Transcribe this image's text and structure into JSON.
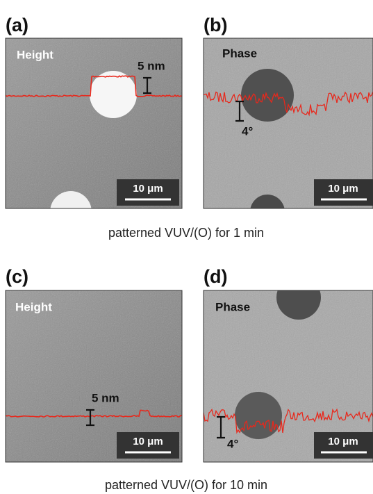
{
  "figure": {
    "rows": [
      {
        "caption": "patterned VUV/(O) for 1 min",
        "panels": [
          {
            "label": "(a)",
            "mode": "Height",
            "profile_scale": "5 nm",
            "scale_bar": "10 μm"
          },
          {
            "label": "(b)",
            "mode": "Phase",
            "profile_scale": "4°",
            "scale_bar": "10 μm"
          }
        ]
      },
      {
        "caption": "patterned VUV/(O) for 10 min",
        "panels": [
          {
            "label": "(c)",
            "mode": "Height",
            "profile_scale": "5 nm",
            "scale_bar": "10 μm"
          },
          {
            "label": "(d)",
            "mode": "Phase",
            "profile_scale": "4°",
            "scale_bar": "10 μm"
          }
        ]
      }
    ]
  }
}
